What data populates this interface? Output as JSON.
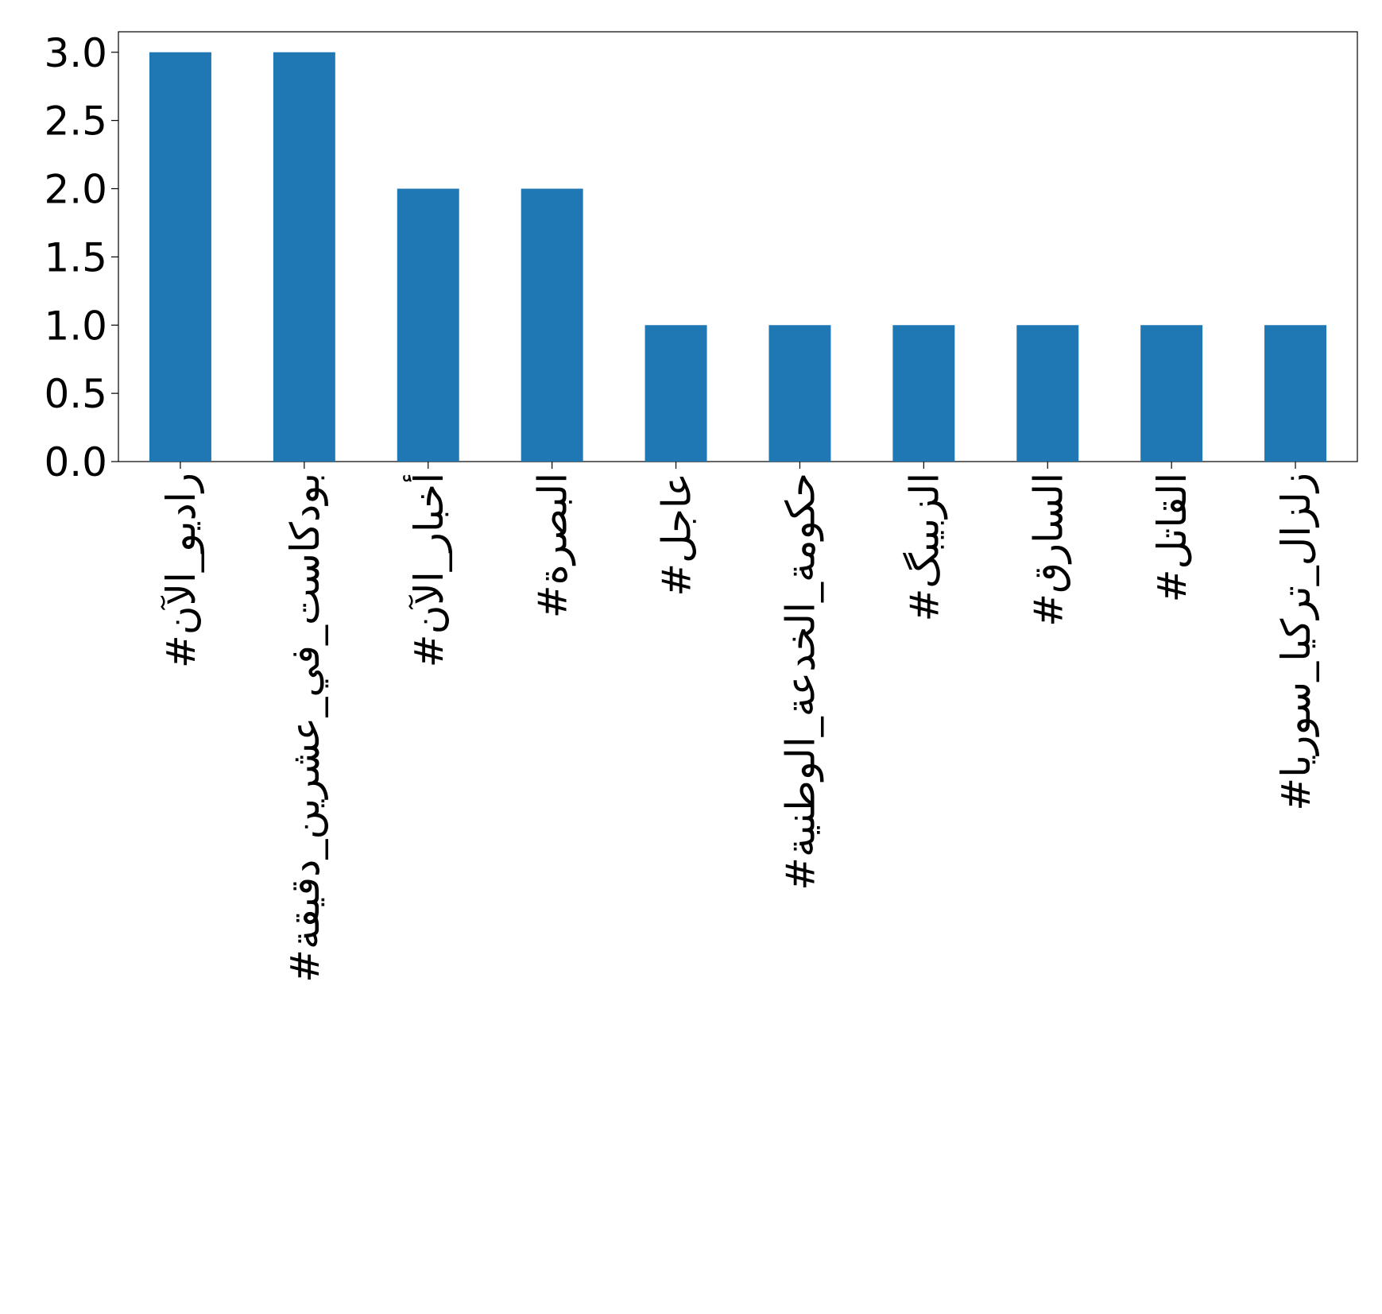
{
  "chart_data": {
    "type": "bar",
    "categories": [
      "#راديو_الآن",
      "#بودكاست_في_عشرين_دقيقة",
      "#أخبار_الآن",
      "#البصرة",
      "#عاجل",
      "#حكومة_الخدعة_الوطنية",
      "#الزبيبگ",
      "#السارق",
      "#القاتل",
      "#زلزال_تركيا_سوريا"
    ],
    "values": [
      3,
      3,
      2,
      2,
      1,
      1,
      1,
      1,
      1,
      1
    ],
    "color": "#1f77b4",
    "ylim": [
      0,
      3.15
    ],
    "yticks": [
      {
        "value": 0,
        "label": "0.0"
      },
      {
        "value": 0.5,
        "label": "0.5"
      },
      {
        "value": 1,
        "label": "1.0"
      },
      {
        "value": 1.5,
        "label": "1.5"
      },
      {
        "value": 2,
        "label": "2.0"
      },
      {
        "value": 2.5,
        "label": "2.5"
      },
      {
        "value": 3,
        "label": "3.0"
      }
    ],
    "grid": false
  }
}
